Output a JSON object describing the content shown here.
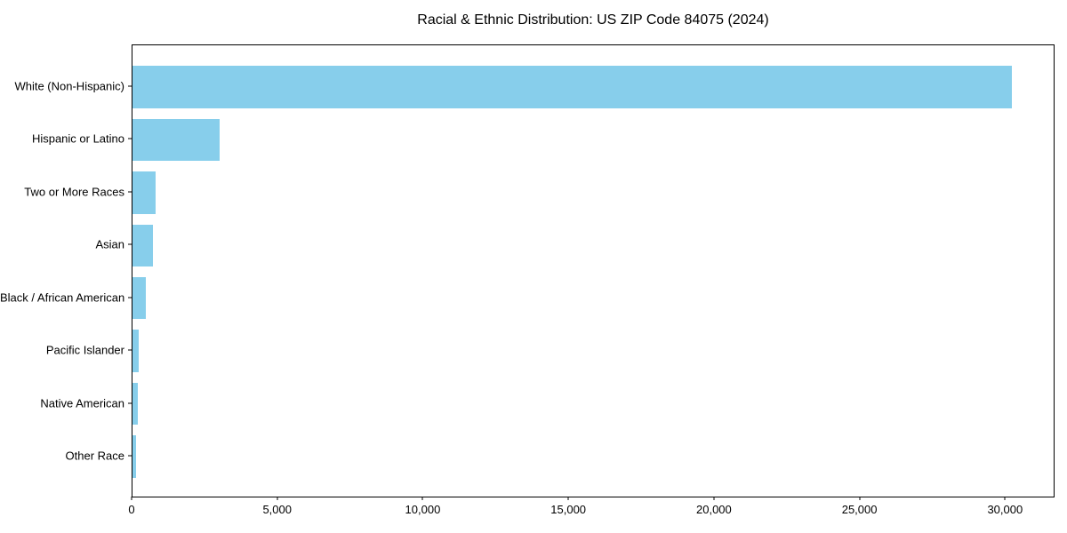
{
  "figure": {
    "background": "#ffffff"
  },
  "chart_data": {
    "type": "bar",
    "orientation": "horizontal",
    "title": "Racial & Ethnic Distribution: US ZIP Code 84075 (2024)",
    "categories": [
      "White (Non-Hispanic)",
      "Hispanic or Latino",
      "Two or More Races",
      "Asian",
      "Black / African American",
      "Pacific Islander",
      "Native American",
      "Other Race"
    ],
    "values": [
      30200,
      3000,
      800,
      700,
      450,
      210,
      170,
      130
    ],
    "xlabel": "",
    "ylabel": "",
    "xlim": [
      0,
      31700
    ],
    "x_ticks": [
      0,
      5000,
      10000,
      15000,
      20000,
      25000,
      30000
    ],
    "x_tick_labels": [
      "0",
      "5,000",
      "10,000",
      "15,000",
      "20,000",
      "25,000",
      "30,000"
    ],
    "bar_color": "#87CEEB",
    "axis_color": "#000000",
    "text_color": "#000000",
    "grid": false,
    "legend": false
  }
}
